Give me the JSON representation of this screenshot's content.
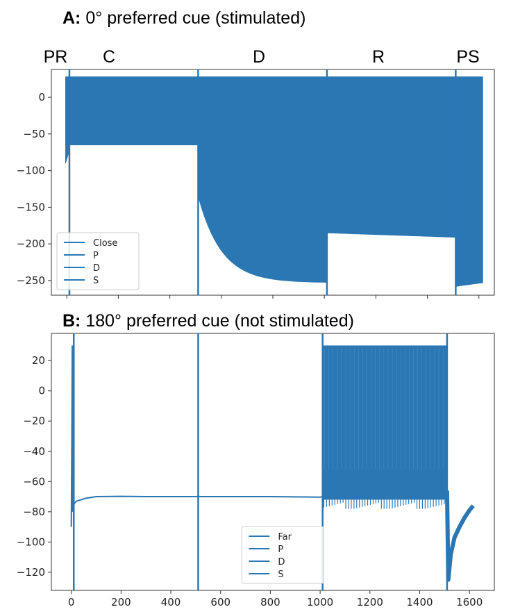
{
  "chart_data": [
    {
      "panel": "A",
      "type": "line",
      "title_prefix": "A:",
      "title": "0° preferred cue (stimulated)",
      "phases": [
        "PR",
        "C",
        "D",
        "R",
        "PS"
      ],
      "xlim": [
        -60,
        1660
      ],
      "ylim": [
        -270,
        38
      ],
      "yticks": [
        0,
        -50,
        -100,
        -150,
        -200,
        -250
      ],
      "xticks": [
        0,
        200,
        400,
        600,
        800,
        1000,
        1200,
        1400,
        1600
      ],
      "show_xtick_labels": false,
      "vlines": [
        10,
        510,
        1010,
        1510
      ],
      "color": "#2a77b4",
      "legend": {
        "placement": "lower-left",
        "entries": [
          "Close",
          "P",
          "D",
          "S"
        ]
      },
      "envelope": [
        {
          "x0": -5,
          "x1": 8,
          "upper": 28,
          "lower_start": -90,
          "lower_end": -75,
          "lower_shape": "linear"
        },
        {
          "x0": 8,
          "x1": 510,
          "upper": 28,
          "lower_start": -65,
          "lower_end": -65,
          "lower_shape": "flat"
        },
        {
          "x0": 510,
          "x1": 1010,
          "upper": 28,
          "lower_start": -135,
          "lower_end": -253,
          "lower_shape": "decay"
        },
        {
          "x0": 1010,
          "x1": 1510,
          "upper": 28,
          "lower_start": -185,
          "lower_end": -191,
          "lower_shape": "flat"
        },
        {
          "x0": 1510,
          "x1": 1615,
          "upper": 28,
          "lower_start": -258,
          "lower_end": -253,
          "lower_shape": "flat"
        }
      ]
    },
    {
      "panel": "B",
      "type": "line",
      "title_prefix": "B:",
      "title": "180° preferred cue (not stimulated)",
      "xlim": [
        -80,
        1700
      ],
      "ylim": [
        -132,
        38
      ],
      "yticks": [
        20,
        0,
        -20,
        -40,
        -60,
        -80,
        -100,
        -120
      ],
      "xticks": [
        0,
        200,
        400,
        600,
        800,
        1000,
        1200,
        1400,
        1600
      ],
      "show_xtick_labels": true,
      "vlines": [
        10,
        510,
        1010,
        1510
      ],
      "color": "#2a77b4",
      "legend": {
        "placement": "lower-center",
        "entries": [
          "Far",
          "P",
          "D",
          "S"
        ]
      },
      "trace": [
        [
          0,
          -90
        ],
        [
          2,
          -40
        ],
        [
          4,
          30
        ],
        [
          6,
          -80
        ],
        [
          8,
          29
        ],
        [
          10,
          -75
        ],
        [
          20,
          -73
        ],
        [
          60,
          -71
        ],
        [
          100,
          -70
        ],
        [
          200,
          -69.8
        ],
        [
          300,
          -70
        ],
        [
          400,
          -70
        ],
        [
          505,
          -70
        ],
        [
          510,
          -69.5
        ],
        [
          515,
          -70
        ],
        [
          600,
          -70
        ],
        [
          800,
          -70
        ],
        [
          1000,
          -70.3
        ],
        [
          1010,
          -70
        ]
      ],
      "burst": {
        "x0": 1010,
        "x1": 1510,
        "upper": 30,
        "lower": -72,
        "dips": [
          -66,
          -78
        ]
      },
      "recovery": [
        [
          1510,
          -66
        ],
        [
          1515,
          -125
        ],
        [
          1525,
          -108
        ],
        [
          1540,
          -97
        ],
        [
          1560,
          -90
        ],
        [
          1580,
          -84
        ],
        [
          1600,
          -79
        ],
        [
          1615,
          -76
        ]
      ]
    }
  ]
}
